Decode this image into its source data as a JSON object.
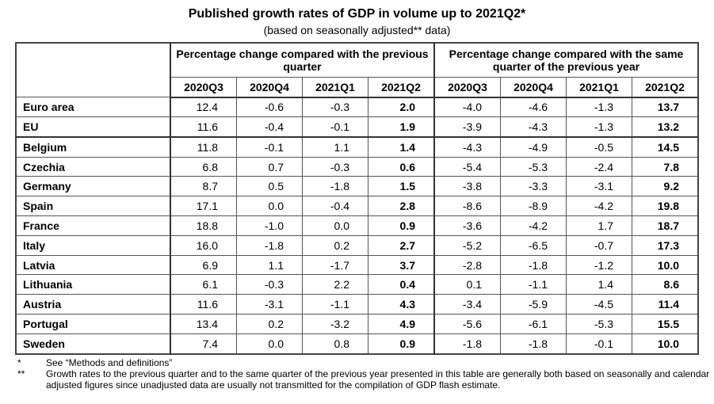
{
  "title": "Published growth rates of GDP in volume up to 2021Q2*",
  "subtitle": "(based on seasonally adjusted** data)",
  "groups": [
    "Percentage change compared with the previous quarter",
    "Percentage change compared with the same quarter of the previous year"
  ],
  "quarters": [
    "2020Q3",
    "2020Q4",
    "2021Q1",
    "2021Q2"
  ],
  "rows": [
    {
      "name": "Euro area",
      "qoq": [
        "12.4",
        "-0.6",
        "-0.3",
        "2.0"
      ],
      "yoy": [
        "-4.0",
        "-4.6",
        "-1.3",
        "13.7"
      ]
    },
    {
      "name": "EU",
      "qoq": [
        "11.6",
        "-0.4",
        "-0.1",
        "1.9"
      ],
      "yoy": [
        "-3.9",
        "-4.3",
        "-1.3",
        "13.2"
      ]
    },
    {
      "name": "Belgium",
      "qoq": [
        "11.8",
        "-0.1",
        "1.1",
        "1.4"
      ],
      "yoy": [
        "-4.3",
        "-4.9",
        "-0.5",
        "14.5"
      ]
    },
    {
      "name": "Czechia",
      "qoq": [
        "6.8",
        "0.7",
        "-0.3",
        "0.6"
      ],
      "yoy": [
        "-5.4",
        "-5.3",
        "-2.4",
        "7.8"
      ]
    },
    {
      "name": "Germany",
      "qoq": [
        "8.7",
        "0.5",
        "-1.8",
        "1.5"
      ],
      "yoy": [
        "-3.8",
        "-3.3",
        "-3.1",
        "9.2"
      ]
    },
    {
      "name": "Spain",
      "qoq": [
        "17.1",
        "0.0",
        "-0.4",
        "2.8"
      ],
      "yoy": [
        "-8.6",
        "-8.9",
        "-4.2",
        "19.8"
      ]
    },
    {
      "name": "France",
      "qoq": [
        "18.8",
        "-1.0",
        "0.0",
        "0.9"
      ],
      "yoy": [
        "-3.6",
        "-4.2",
        "1.7",
        "18.7"
      ]
    },
    {
      "name": "Italy",
      "qoq": [
        "16.0",
        "-1.8",
        "0.2",
        "2.7"
      ],
      "yoy": [
        "-5.2",
        "-6.5",
        "-0.7",
        "17.3"
      ]
    },
    {
      "name": "Latvia",
      "qoq": [
        "6.9",
        "1.1",
        "-1.7",
        "3.7"
      ],
      "yoy": [
        "-2.8",
        "-1.8",
        "-1.2",
        "10.0"
      ]
    },
    {
      "name": "Lithuania",
      "qoq": [
        "6.1",
        "-0.3",
        "2.2",
        "0.4"
      ],
      "yoy": [
        "0.1",
        "-1.1",
        "1.4",
        "8.6"
      ]
    },
    {
      "name": "Austria",
      "qoq": [
        "11.6",
        "-3.1",
        "-1.1",
        "4.3"
      ],
      "yoy": [
        "-3.4",
        "-5.9",
        "-4.5",
        "11.4"
      ]
    },
    {
      "name": "Portugal",
      "qoq": [
        "13.4",
        "0.2",
        "-3.2",
        "4.9"
      ],
      "yoy": [
        "-5.6",
        "-6.1",
        "-5.3",
        "15.5"
      ]
    },
    {
      "name": "Sweden",
      "qoq": [
        "7.4",
        "0.0",
        "0.8",
        "0.9"
      ],
      "yoy": [
        "-1.8",
        "-1.8",
        "-0.1",
        "10.0"
      ]
    }
  ],
  "footnotes": [
    {
      "mark": "*",
      "text": "See “Methods and definitions”"
    },
    {
      "mark": "**",
      "text": "Growth rates to the previous quarter and to the same quarter of the previous year presented in this table are generally both based on seasonally and calendar adjusted figures since unadjusted data are usually not transmitted for the compilation of GDP flash estimate."
    }
  ]
}
